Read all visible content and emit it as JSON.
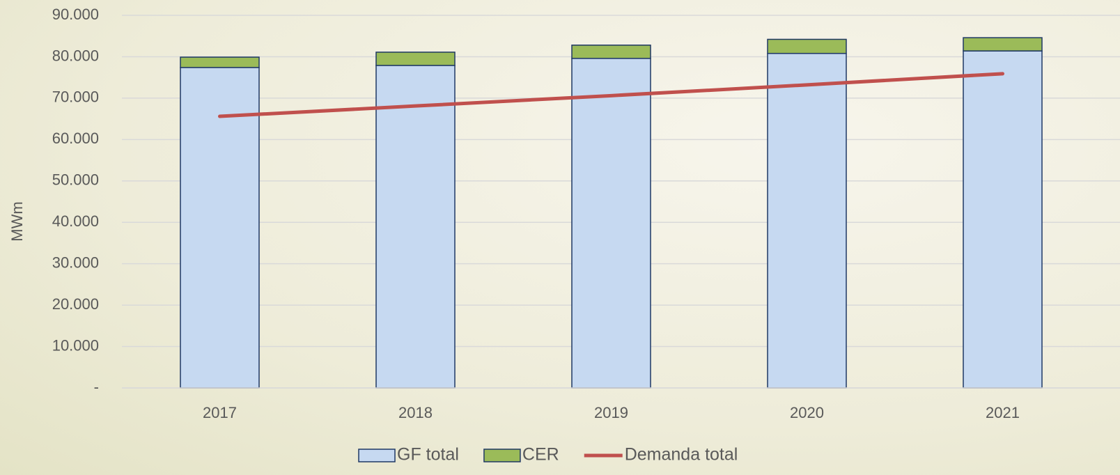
{
  "chart_data": {
    "type": "bar",
    "stacked": true,
    "y_label": "MWm",
    "categories": [
      "2017",
      "2018",
      "2019",
      "2020",
      "2021"
    ],
    "series": [
      {
        "name": "GF total",
        "type": "bar",
        "color": "#c6d9f1",
        "values": [
          77400,
          77900,
          79600,
          80800,
          81400
        ]
      },
      {
        "name": "CER",
        "type": "bar",
        "color": "#9bbb59",
        "values": [
          2500,
          3200,
          3200,
          3400,
          3200
        ]
      },
      {
        "name": "Demanda total",
        "type": "line",
        "color": "#c0504d",
        "values": [
          65600,
          68100,
          70600,
          73200,
          75900
        ]
      }
    ],
    "ylim": [
      0,
      90000
    ],
    "yticks": [
      {
        "value": 0,
        "label": "-"
      },
      {
        "value": 10000,
        "label": "10.000"
      },
      {
        "value": 20000,
        "label": "20.000"
      },
      {
        "value": 30000,
        "label": "30.000"
      },
      {
        "value": 40000,
        "label": "40.000"
      },
      {
        "value": 50000,
        "label": "50.000"
      },
      {
        "value": 60000,
        "label": "60.000"
      },
      {
        "value": 70000,
        "label": "70.000"
      },
      {
        "value": 80000,
        "label": "80.000"
      },
      {
        "value": 90000,
        "label": "90.000"
      }
    ],
    "grid": true,
    "legend": "bottom"
  }
}
